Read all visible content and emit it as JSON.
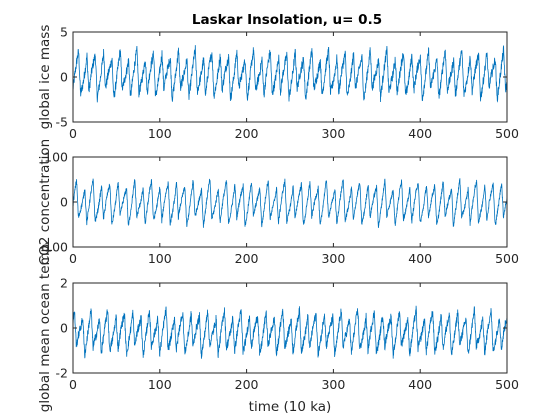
{
  "figure_title": "Laskar Insolation, u= 0.5",
  "colors": {
    "line": "#0072BD",
    "axis": "#262626",
    "background": "#ffffff"
  },
  "chart_data": [
    {
      "type": "line",
      "title": "Laskar Insolation, u= 0.5",
      "ylabel": "global ice mass",
      "xlabel": "",
      "xlim": [
        0,
        500
      ],
      "ylim": [
        -5,
        5
      ],
      "xticks": [
        "0",
        "100",
        "200",
        "300",
        "400",
        "500"
      ],
      "yticks": [
        "-5",
        "0",
        "5"
      ],
      "grid": false,
      "series": [
        {
          "period": 9.6,
          "amplitude": 2.2,
          "offset": 0.3,
          "noise": 0.55,
          "shape": "sawtooth",
          "phase": 0.1
        }
      ]
    },
    {
      "type": "line",
      "title": "",
      "ylabel": "CO2 concentration",
      "xlabel": "",
      "xlim": [
        0,
        500
      ],
      "ylim": [
        -100,
        100
      ],
      "xticks": [
        "0",
        "100",
        "200",
        "300",
        "400",
        "500"
      ],
      "yticks": [
        "-100",
        "0",
        "100"
      ],
      "grid": false,
      "series": [
        {
          "period": 9.6,
          "amplitude": 42,
          "offset": -2,
          "noise": 6,
          "shape": "sawtooth",
          "phase": 0.35
        }
      ]
    },
    {
      "type": "line",
      "title": "",
      "ylabel": "global mean ocean temp",
      "xlabel": "time (10 ka)",
      "xlim": [
        0,
        500
      ],
      "ylim": [
        -2,
        2
      ],
      "xticks": [
        "0",
        "100",
        "200",
        "300",
        "400",
        "500"
      ],
      "yticks": [
        "-2",
        "0",
        "2"
      ],
      "grid": false,
      "series": [
        {
          "period": 9.6,
          "amplitude": 0.82,
          "offset": -0.2,
          "noise": 0.2,
          "shape": "sawtooth",
          "phase": 0.6
        }
      ]
    }
  ]
}
